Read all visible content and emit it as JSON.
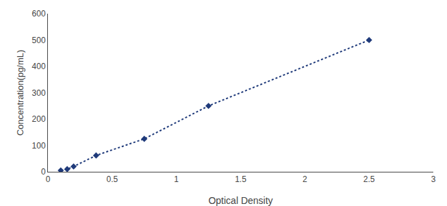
{
  "chart_data": {
    "type": "line",
    "x": [
      0.1,
      0.15,
      0.2,
      0.375,
      0.75,
      1.25,
      2.5
    ],
    "values": [
      5,
      10,
      20,
      62,
      125,
      250,
      500
    ],
    "color": "#1F3A7A",
    "marker": "diamond",
    "line_style": "dotted",
    "xlabel": "Optical Density",
    "ylabel": "Concentration(pg/mL)",
    "xlim": [
      0,
      3
    ],
    "ylim": [
      0,
      600
    ],
    "xticks": [
      0,
      0.5,
      1,
      1.5,
      2,
      2.5,
      3
    ],
    "yticks": [
      0,
      100,
      200,
      300,
      400,
      500,
      600
    ],
    "grid": false
  }
}
